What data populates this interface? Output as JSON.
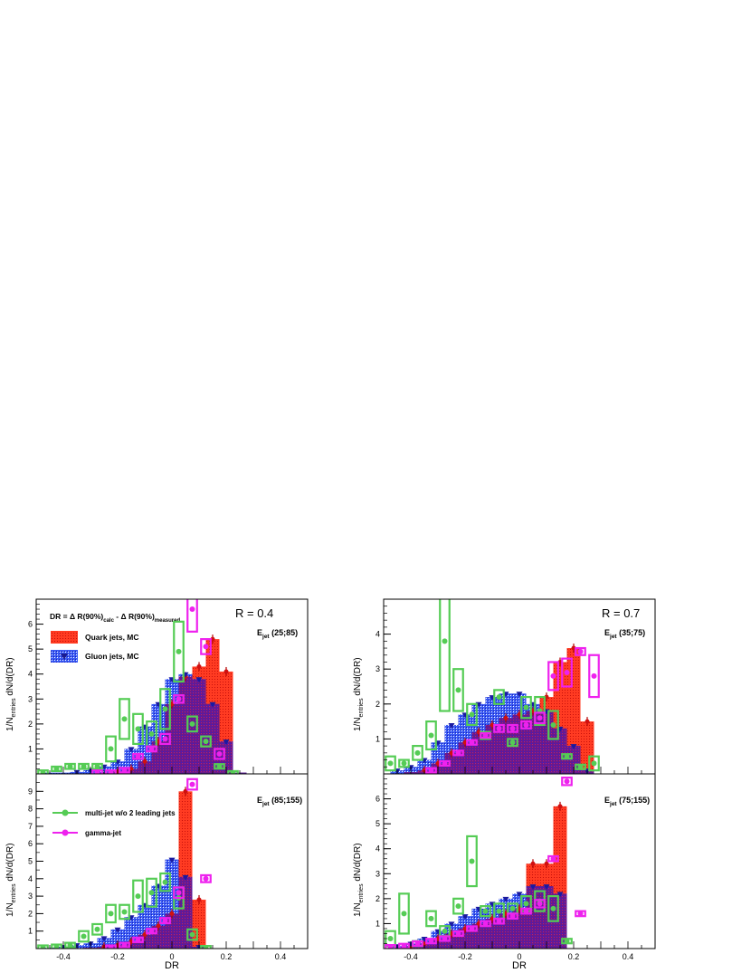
{
  "figure": {
    "ylabel": "1/N",
    "ylabel_sub": "entries",
    "ylabel_tail": " dN/d(DR)",
    "xlabel": "DR",
    "dr_def": {
      "main": "DR = Δ R(90%)",
      "sub1": "calc",
      "mid": " - Δ R(90%)",
      "sub2": "measured"
    },
    "r_labels": [
      "R = 0.4",
      "R = 0.7"
    ],
    "colors": {
      "quark": "#ff2a1a",
      "gluon": "#2a2af5",
      "multijet": "#55cc55",
      "gamma": "#ee22ee",
      "overlap": "#7a1a8a"
    }
  },
  "legend": {
    "quark": "Quark jets, MC",
    "gluon": "Gluon jets, MC",
    "multijet": "multi-jet w/o 2 leading jets",
    "gamma": "gamma-jet"
  },
  "chart_data": [
    {
      "type": "bar",
      "panel": "top-left",
      "energy_label": {
        "main": "E",
        "sub": "jet",
        "range": " (25;85)"
      },
      "xlim": [
        -0.5,
        0.5
      ],
      "ylim": [
        0,
        7
      ],
      "yticks": [
        1,
        2,
        3,
        4,
        5,
        6
      ],
      "xticks": [
        -0.4,
        -0.2,
        0,
        0.2,
        0.4
      ],
      "bin_width": 0.05,
      "series": [
        {
          "name": "Quark jets, MC",
          "type": "hist",
          "x": [
            -0.45,
            -0.4,
            -0.35,
            -0.3,
            -0.25,
            -0.2,
            -0.15,
            -0.1,
            -0.05,
            0,
            0.05,
            0.1,
            0.15,
            0.2,
            0.25,
            0.3
          ],
          "values": [
            0,
            0,
            0,
            0.02,
            0.05,
            0.1,
            0.2,
            0.5,
            1.3,
            2.8,
            3.9,
            4.3,
            5.4,
            4.1,
            0.05,
            0
          ]
        },
        {
          "name": "Gluon jets, MC",
          "type": "hist",
          "x": [
            -0.45,
            -0.4,
            -0.35,
            -0.3,
            -0.25,
            -0.2,
            -0.15,
            -0.1,
            -0.05,
            0,
            0.05,
            0.1,
            0.15,
            0.2,
            0.25,
            0.3
          ],
          "values": [
            0.05,
            0.05,
            0.08,
            0.15,
            0.3,
            0.5,
            1.0,
            1.9,
            2.8,
            3.8,
            4.0,
            3.8,
            2.8,
            1.3,
            0.05,
            0
          ]
        },
        {
          "name": "multi-jet w/o 2 leading jets",
          "type": "boxes",
          "x": [
            -0.475,
            -0.425,
            -0.375,
            -0.325,
            -0.275,
            -0.225,
            -0.175,
            -0.125,
            -0.075,
            -0.025,
            0.025,
            0.075,
            0.125,
            0.175,
            0.225
          ],
          "values": [
            0.05,
            0.2,
            0.3,
            0.3,
            0.3,
            1.0,
            2.2,
            1.8,
            1.6,
            2.6,
            4.9,
            2.0,
            1.3,
            0.3,
            0.02
          ],
          "errors": [
            0.05,
            0.08,
            0.1,
            0.1,
            0.1,
            0.5,
            0.8,
            0.6,
            0.5,
            0.8,
            1.2,
            0.3,
            0.2,
            0.05,
            0.05
          ]
        },
        {
          "name": "gamma-jet",
          "type": "boxes",
          "x": [
            -0.275,
            -0.225,
            -0.175,
            -0.125,
            -0.075,
            -0.025,
            0.025,
            0.075,
            0.125,
            0.175
          ],
          "values": [
            0.05,
            0.05,
            0.15,
            0.7,
            1.0,
            1.4,
            3.0,
            6.6,
            5.1,
            0.8
          ],
          "errors": [
            0.05,
            0.05,
            0.05,
            0.1,
            0.1,
            0.2,
            0.15,
            0.9,
            0.3,
            0.2
          ]
        }
      ]
    },
    {
      "type": "bar",
      "panel": "bottom-left",
      "energy_label": {
        "main": "E",
        "sub": "jet",
        "range": " (85;155)"
      },
      "xlim": [
        -0.5,
        0.5
      ],
      "ylim": [
        0,
        10
      ],
      "yticks": [
        1,
        2,
        3,
        4,
        5,
        6,
        7,
        8,
        9
      ],
      "xticks": [
        -0.4,
        -0.2,
        0,
        0.2,
        0.4
      ],
      "bin_width": 0.05,
      "series": [
        {
          "name": "Quark jets, MC",
          "type": "hist",
          "x": [
            -0.45,
            -0.4,
            -0.35,
            -0.3,
            -0.25,
            -0.2,
            -0.15,
            -0.1,
            -0.05,
            0,
            0.05,
            0.1,
            0.15,
            0.2
          ],
          "values": [
            0,
            0,
            0,
            0.05,
            0.1,
            0.2,
            0.4,
            0.8,
            1.3,
            2.0,
            9.0,
            2.8,
            0,
            0
          ]
        },
        {
          "name": "Gluon jets, MC",
          "type": "hist",
          "x": [
            -0.45,
            -0.4,
            -0.35,
            -0.3,
            -0.25,
            -0.2,
            -0.15,
            -0.1,
            -0.05,
            0,
            0.05,
            0.1,
            0.15,
            0.2
          ],
          "values": [
            0.05,
            0.1,
            0.2,
            0.3,
            0.6,
            1.1,
            1.8,
            2.5,
            3.6,
            5.1,
            4.1,
            0.1,
            0,
            0
          ]
        },
        {
          "name": "multi-jet w/o 2 leading jets",
          "type": "boxes",
          "x": [
            -0.475,
            -0.425,
            -0.375,
            -0.325,
            -0.275,
            -0.225,
            -0.175,
            -0.125,
            -0.075,
            -0.025,
            0.025,
            0.075,
            0.125
          ],
          "values": [
            0.05,
            0.1,
            0.2,
            0.7,
            1.1,
            2.0,
            2.1,
            3.0,
            3.2,
            3.8,
            2.9,
            0.8,
            0.02
          ],
          "errors": [
            0.05,
            0.05,
            0.1,
            0.3,
            0.3,
            0.5,
            0.4,
            0.9,
            0.8,
            0.5,
            0.6,
            0.3,
            0.05
          ]
        },
        {
          "name": "gamma-jet",
          "type": "boxes",
          "x": [
            -0.225,
            -0.175,
            -0.125,
            -0.075,
            -0.025,
            0.025,
            0.075,
            0.125
          ],
          "values": [
            0.05,
            0.2,
            0.5,
            1.0,
            1.6,
            3.2,
            9.4,
            4.0
          ],
          "errors": [
            0.05,
            0.05,
            0.1,
            0.1,
            0.15,
            0.3,
            0.3,
            0.2
          ]
        }
      ]
    },
    {
      "type": "bar",
      "panel": "top-right",
      "energy_label": {
        "main": "E",
        "sub": "jet",
        "range": " (35;75)"
      },
      "xlim": [
        -0.5,
        0.5
      ],
      "ylim": [
        0,
        5
      ],
      "yticks": [
        1,
        2,
        3,
        4
      ],
      "xticks": [
        -0.4,
        -0.2,
        0,
        0.2,
        0.4
      ],
      "bin_width": 0.05,
      "series": [
        {
          "name": "Quark jets, MC",
          "type": "hist",
          "x": [
            -0.45,
            -0.4,
            -0.35,
            -0.3,
            -0.25,
            -0.2,
            -0.15,
            -0.1,
            -0.05,
            0,
            0.05,
            0.1,
            0.15,
            0.2,
            0.25
          ],
          "values": [
            0,
            0.05,
            0.1,
            0.3,
            0.6,
            0.9,
            1.2,
            1.4,
            1.6,
            1.7,
            1.8,
            2.2,
            3.2,
            3.6,
            1.5
          ]
        },
        {
          "name": "Gluon jets, MC",
          "type": "hist",
          "x": [
            -0.45,
            -0.4,
            -0.35,
            -0.3,
            -0.25,
            -0.2,
            -0.15,
            -0.1,
            -0.05,
            0,
            0.05,
            0.1,
            0.15,
            0.2,
            0.25
          ],
          "values": [
            0.1,
            0.2,
            0.4,
            0.9,
            1.4,
            1.7,
            2.0,
            2.2,
            2.3,
            2.3,
            2.0,
            1.8,
            1.3,
            0.8,
            0.1
          ]
        },
        {
          "name": "multi-jet w/o 2 leading jets",
          "type": "boxes",
          "x": [
            -0.475,
            -0.425,
            -0.375,
            -0.325,
            -0.275,
            -0.225,
            -0.175,
            -0.125,
            -0.075,
            -0.025,
            0.025,
            0.075,
            0.125,
            0.175,
            0.225,
            0.275
          ],
          "values": [
            0.3,
            0.3,
            0.6,
            1.1,
            3.8,
            2.4,
            1.7,
            1.1,
            2.2,
            0.9,
            1.9,
            1.8,
            1.4,
            0.5,
            0.2,
            0.3
          ],
          "errors": [
            0.2,
            0.1,
            0.2,
            0.4,
            2.0,
            0.6,
            0.3,
            0.1,
            0.2,
            0.1,
            0.3,
            0.4,
            0.4,
            0.05,
            0.05,
            0.2
          ]
        },
        {
          "name": "gamma-jet",
          "type": "boxes",
          "x": [
            -0.325,
            -0.275,
            -0.225,
            -0.175,
            -0.125,
            -0.075,
            -0.025,
            0.025,
            0.075,
            0.125,
            0.175,
            0.225,
            0.275
          ],
          "values": [
            0.1,
            0.3,
            0.6,
            0.9,
            1.1,
            1.3,
            1.3,
            1.4,
            1.6,
            2.8,
            2.9,
            3.5,
            2.8
          ],
          "errors": [
            0.05,
            0.05,
            0.05,
            0.05,
            0.05,
            0.1,
            0.1,
            0.1,
            0.15,
            0.4,
            0.4,
            0.1,
            0.6
          ]
        }
      ]
    },
    {
      "type": "bar",
      "panel": "bottom-right",
      "energy_label": {
        "main": "E",
        "sub": "jet",
        "range": " (75;155)"
      },
      "xlim": [
        -0.5,
        0.5
      ],
      "ylim": [
        0,
        7
      ],
      "yticks": [
        1,
        2,
        3,
        4,
        5,
        6
      ],
      "xticks": [
        -0.4,
        -0.2,
        0,
        0.2,
        0.4
      ],
      "bin_width": 0.05,
      "series": [
        {
          "name": "Quark jets, MC",
          "type": "hist",
          "x": [
            -0.45,
            -0.4,
            -0.35,
            -0.3,
            -0.25,
            -0.2,
            -0.15,
            -0.1,
            -0.05,
            0,
            0.05,
            0.1,
            0.15,
            0.2
          ],
          "values": [
            0,
            0.1,
            0.2,
            0.4,
            0.6,
            0.8,
            1.0,
            1.2,
            1.4,
            1.6,
            3.4,
            3.4,
            5.7,
            0
          ]
        },
        {
          "name": "Gluon jets, MC",
          "type": "hist",
          "x": [
            -0.45,
            -0.4,
            -0.35,
            -0.3,
            -0.25,
            -0.2,
            -0.15,
            -0.1,
            -0.05,
            0,
            0.05,
            0.1,
            0.15,
            0.2
          ],
          "values": [
            0.1,
            0.2,
            0.4,
            0.7,
            1.0,
            1.3,
            1.6,
            1.8,
            2.0,
            2.2,
            2.5,
            2.5,
            2.2,
            0
          ]
        },
        {
          "name": "multi-jet w/o 2 leading jets",
          "type": "boxes",
          "x": [
            -0.475,
            -0.425,
            -0.375,
            -0.325,
            -0.275,
            -0.225,
            -0.175,
            -0.125,
            -0.075,
            -0.025,
            0.025,
            0.075,
            0.125,
            0.175
          ],
          "values": [
            0.4,
            1.4,
            0.2,
            1.2,
            0.7,
            1.7,
            3.5,
            1.5,
            1.5,
            1.6,
            1.8,
            1.9,
            1.6,
            0.3
          ],
          "errors": [
            0.3,
            0.8,
            0.1,
            0.3,
            0.2,
            0.3,
            1.0,
            0.2,
            0.3,
            0.2,
            0.3,
            0.4,
            0.5,
            0.05
          ]
        },
        {
          "name": "gamma-jet",
          "type": "boxes",
          "x": [
            -0.475,
            -0.425,
            -0.375,
            -0.325,
            -0.275,
            -0.225,
            -0.175,
            -0.125,
            -0.075,
            -0.025,
            0.025,
            0.075,
            0.125,
            0.175,
            0.225
          ],
          "values": [
            0.05,
            0.1,
            0.2,
            0.3,
            0.4,
            0.6,
            0.8,
            1.0,
            1.1,
            1.3,
            1.5,
            1.8,
            3.6,
            6.7,
            1.4
          ],
          "errors": [
            0.05,
            0.05,
            0.05,
            0.05,
            0.05,
            0.05,
            0.05,
            0.1,
            0.1,
            0.1,
            0.1,
            0.15,
            0.1,
            0.15,
            0.1
          ]
        }
      ]
    }
  ]
}
